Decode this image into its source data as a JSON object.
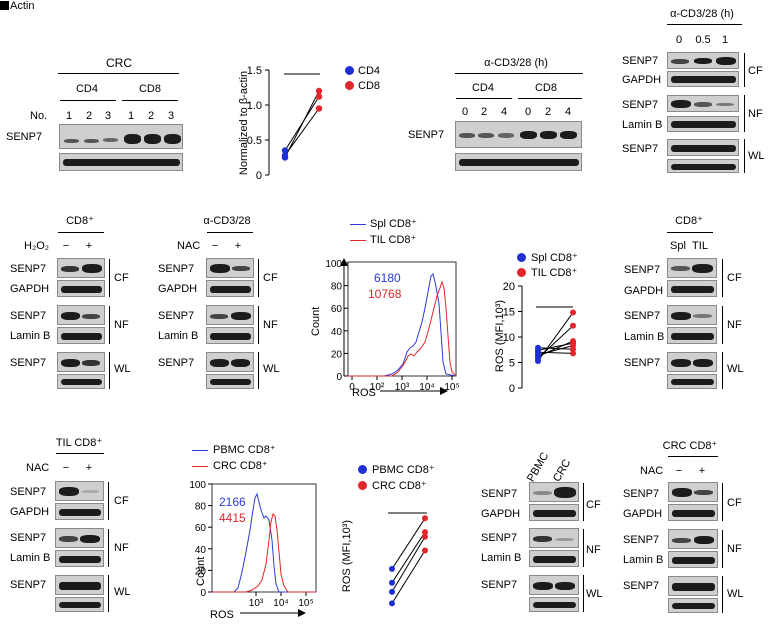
{
  "corner_label": "Actin",
  "panelA": {
    "group": "CRC",
    "subsets": [
      "CD4",
      "CD8"
    ],
    "no_label": "No.",
    "lanes": [
      "1",
      "2",
      "3",
      "1",
      "2",
      "3"
    ],
    "row_label": "SENP7"
  },
  "panelB": {
    "ylabel": "Normalized to β-actin",
    "legend": [
      "CD4",
      "CD8"
    ],
    "colors": {
      "cd4": "#1f2fd6",
      "cd8": "#e0262b"
    },
    "chart_data": {
      "type": "scatter",
      "ylabel": "Normalized to β-actin",
      "ylim": [
        0,
        1.5
      ],
      "yticks": [
        "0",
        "0.5",
        "1.0",
        "1.5"
      ],
      "series": [
        {
          "name": "CD4",
          "values": [
            0.25,
            0.35,
            0.28
          ]
        },
        {
          "name": "CD8",
          "values": [
            1.2,
            1.12,
            0.95
          ]
        }
      ]
    }
  },
  "panelC": {
    "treatment": "α-CD3/28 (h)",
    "subsets": [
      "CD4",
      "CD8"
    ],
    "lanes": [
      "0",
      "2",
      "4",
      "0",
      "2",
      "4"
    ],
    "row_label": "SENP7"
  },
  "panelD": {
    "treatment": "α-CD3/28 (h)",
    "lanes": [
      "0",
      "0.5",
      "1"
    ],
    "rows": [
      "SENP7",
      "GAPDH",
      "SENP7",
      "Lamin B",
      "SENP7"
    ],
    "fractions": [
      "CF",
      "NF",
      "WL"
    ]
  },
  "panelE": {
    "header": "CD8⁺",
    "treat": "H₂O₂",
    "signs": [
      "−",
      "+"
    ],
    "rows": [
      "SENP7",
      "GAPDH",
      "SENP7",
      "Lamin B",
      "SENP7"
    ],
    "fractions": [
      "CF",
      "NF",
      "WL"
    ]
  },
  "panelF": {
    "header": "α-CD3/28",
    "treat": "NAC",
    "signs": [
      "−",
      "+"
    ],
    "rows": [
      "SENP7",
      "GAPDH",
      "SENP7",
      "Lamin B",
      "SENP7"
    ],
    "fractions": [
      "CF",
      "NF",
      "WL"
    ]
  },
  "panelG": {
    "legend": [
      "Spl CD8⁺",
      "TIL CD8⁺"
    ],
    "mfi": [
      "6180",
      "10768"
    ],
    "ylabel": "Count",
    "xlabel": "ROS",
    "yticks": [
      "0",
      "20",
      "40",
      "60",
      "80",
      "100"
    ],
    "xticks": [
      "0",
      "10²",
      "10³",
      "10⁴",
      "10⁵"
    ],
    "colors": {
      "a": "#2a3ad6",
      "b": "#e0262b"
    }
  },
  "panelH": {
    "legend": [
      "Spl CD8⁺",
      "TIL CD8⁺"
    ],
    "ylabel": "ROS (MFI,10³)",
    "chart_data": {
      "type": "scatter",
      "ylabel": "ROS (MFI,10³)",
      "ylim": [
        0,
        20
      ],
      "yticks": [
        "0",
        "5",
        "10",
        "15",
        "20"
      ],
      "series": [
        {
          "name": "Spl CD8⁺",
          "values": [
            5.3,
            5.8,
            6.2,
            6.5,
            7.0,
            7.4,
            7.9
          ]
        },
        {
          "name": "TIL CD8⁺",
          "values": [
            14.8,
            12.2,
            9.2,
            8.3,
            6.8,
            8.8,
            7.6
          ]
        }
      ]
    }
  },
  "panelI": {
    "header": "CD8⁺",
    "lanes": [
      "Spl",
      "TIL"
    ],
    "rows": [
      "SENP7",
      "GAPDH",
      "SENP7",
      "Lamin B",
      "SENP7"
    ],
    "fractions": [
      "CF",
      "NF",
      "WL"
    ]
  },
  "panelJ": {
    "header": "TIL CD8⁺",
    "treat": "NAC",
    "signs": [
      "−",
      "+"
    ],
    "rows": [
      "SENP7",
      "GAPDH",
      "SENP7",
      "Lamin B",
      "SENP7"
    ],
    "fractions": [
      "CF",
      "NF",
      "WL"
    ]
  },
  "panelK": {
    "legend": [
      "PBMC CD8⁺",
      "CRC CD8⁺"
    ],
    "mfi": [
      "2166",
      "4415"
    ],
    "ylabel": "Count",
    "xlabel": "ROS",
    "yticks": [
      "0",
      "20",
      "40",
      "60",
      "80",
      "100"
    ],
    "xticks": [
      "10³",
      "10⁴",
      "10⁵"
    ]
  },
  "panelL": {
    "legend": [
      "PBMC CD8⁺",
      "CRC CD8⁺"
    ],
    "ylabel": "ROS (MFI,10³)",
    "chart_data": {
      "type": "scatter",
      "ylabel": "ROS (MFI,10³)",
      "series": [
        {
          "name": "PBMC CD8⁺",
          "values": [
            2.2,
            1.6,
            1.2,
            0.7
          ]
        },
        {
          "name": "CRC CD8⁺",
          "values": [
            4.4,
            3.8,
            3.6,
            3.0
          ]
        }
      ]
    }
  },
  "panelM": {
    "lanes": [
      "PBMC",
      "CRC"
    ],
    "rows": [
      "SENP7",
      "GAPDH",
      "SENP7",
      "Lamin B",
      "SENP7"
    ],
    "fractions": [
      "CF",
      "NF",
      "WL"
    ]
  },
  "panelN": {
    "header": "CRC CD8⁺",
    "treat": "NAC",
    "signs": [
      "−",
      "+"
    ],
    "rows": [
      "SENP7",
      "GAPDH",
      "SENP7",
      "Lamin B",
      "SENP7"
    ],
    "fractions": [
      "CF",
      "NF",
      "WL"
    ]
  }
}
